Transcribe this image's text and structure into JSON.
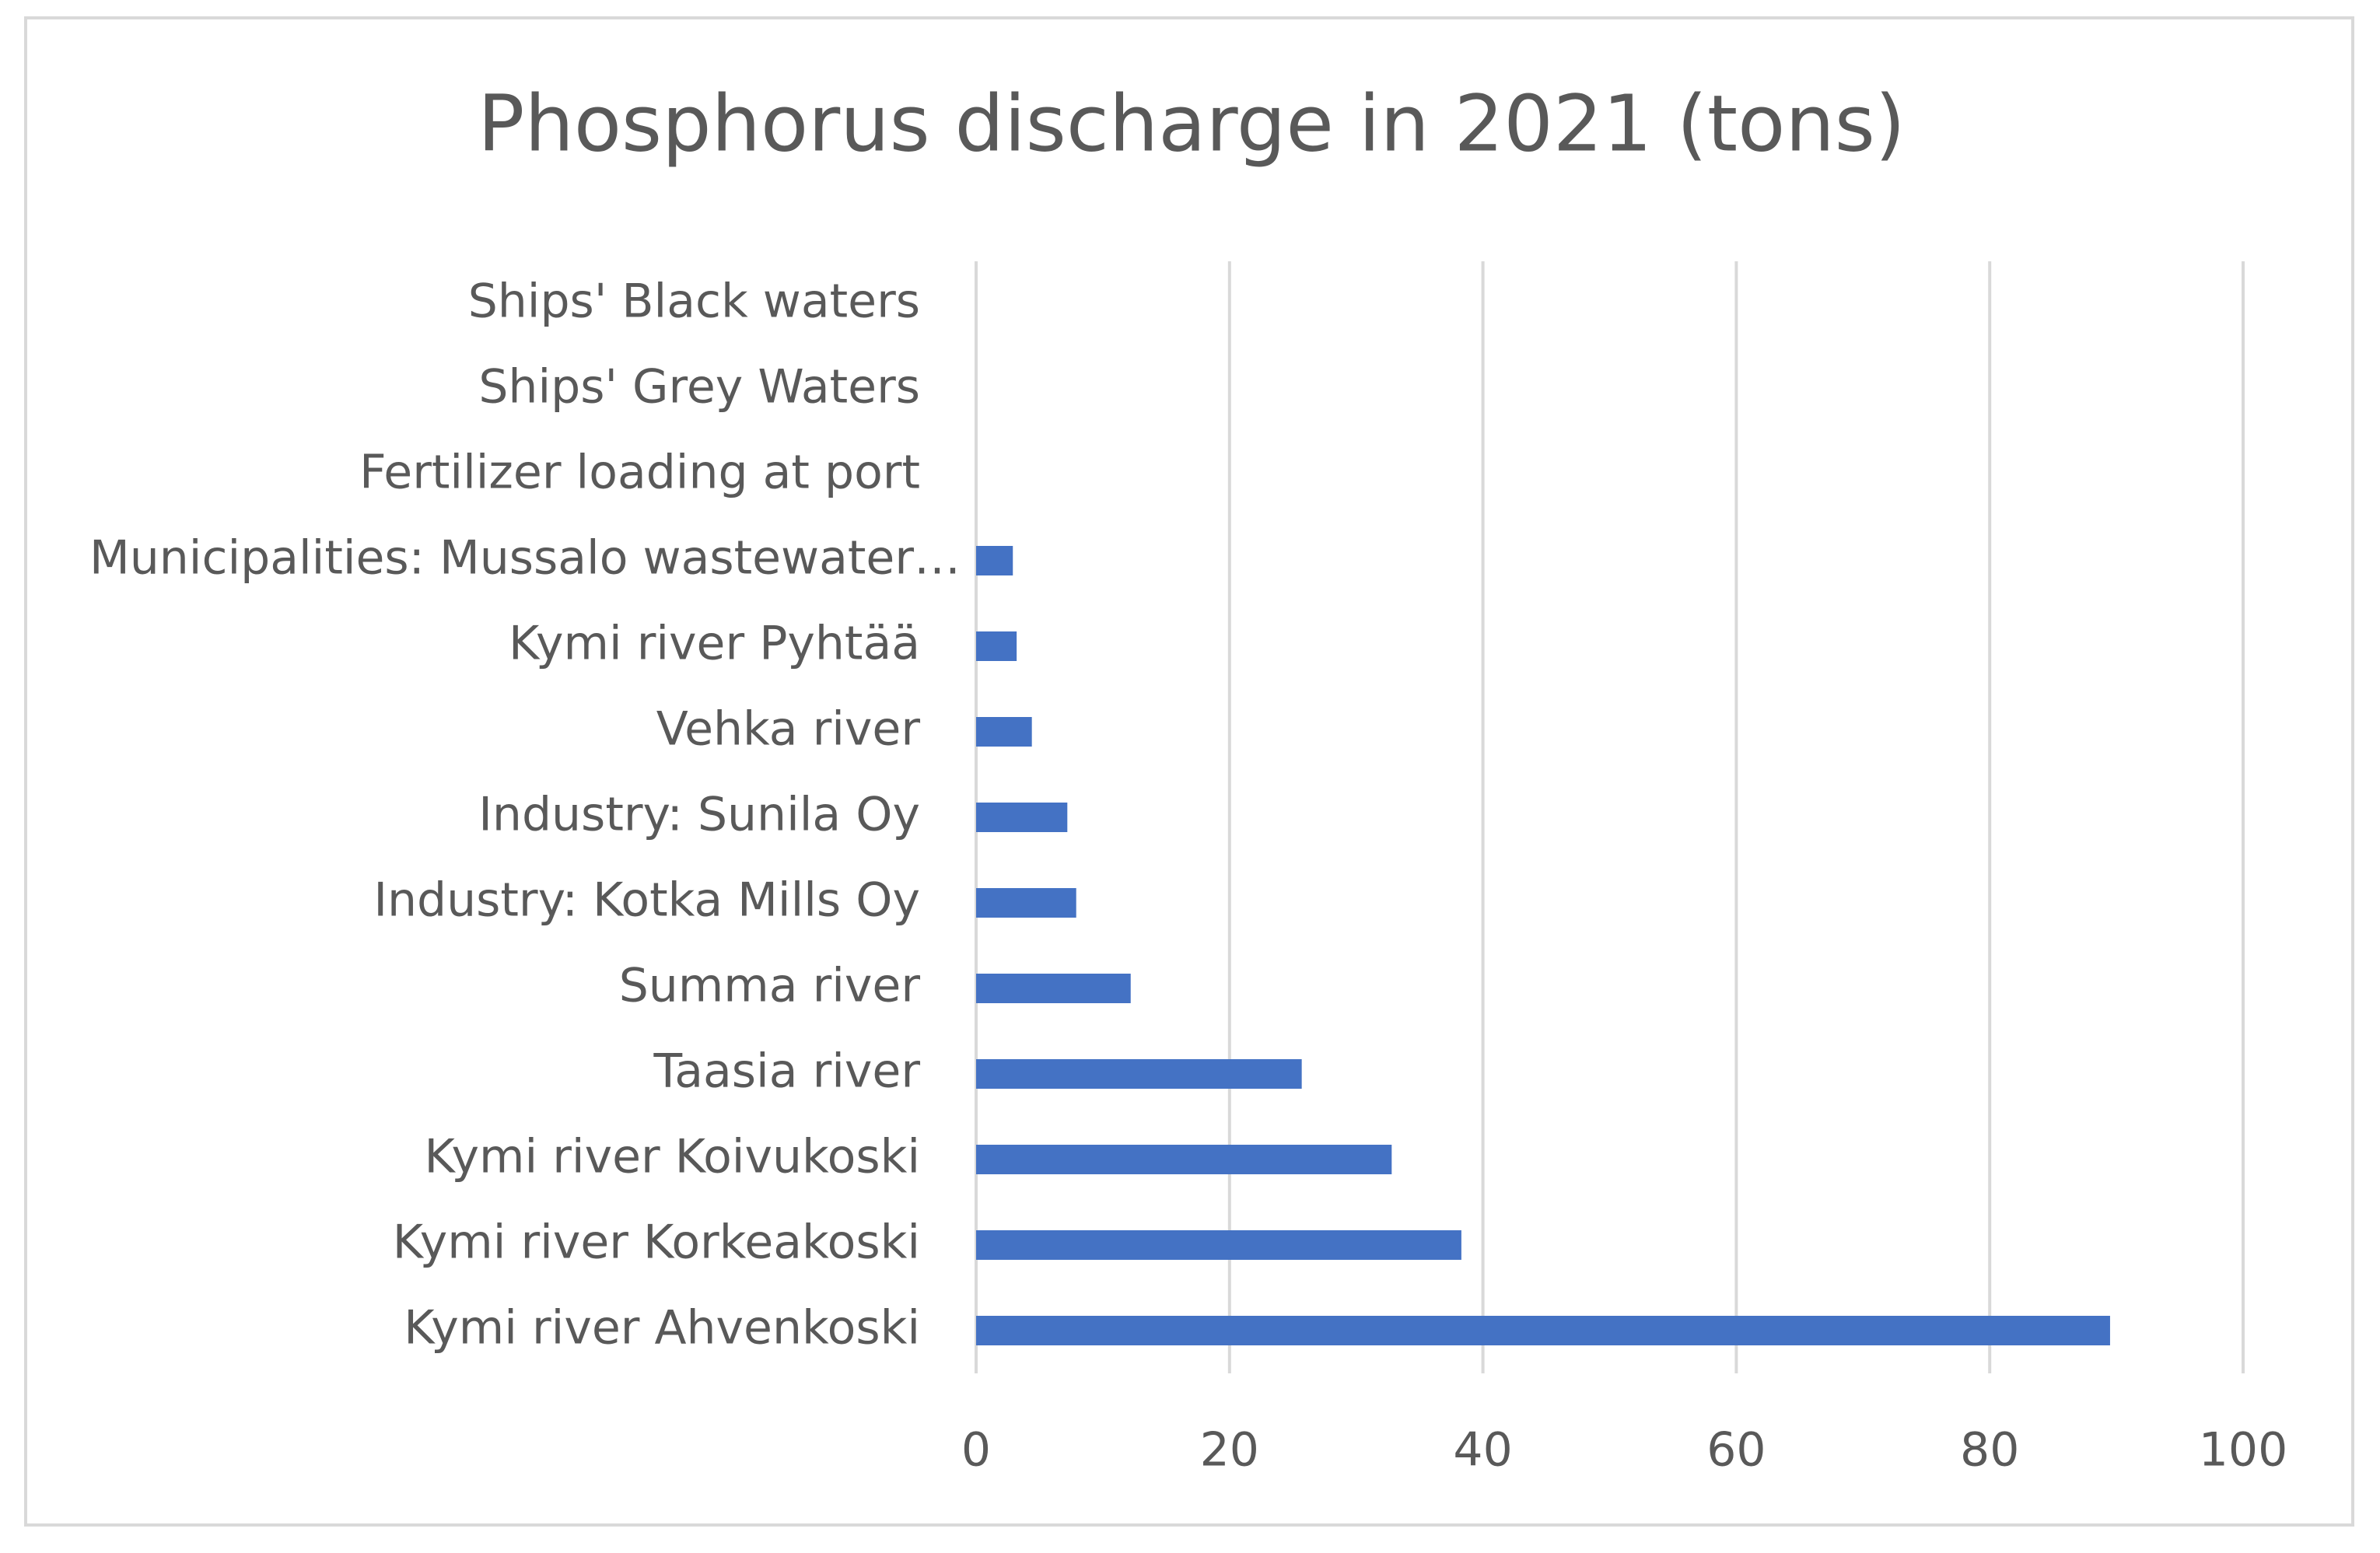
{
  "chart_data": {
    "type": "hbar",
    "title": "Phosphorus discharge in 2021 (tons)",
    "categories": [
      "Ships' Black waters",
      "Ships' Grey Waters",
      "Fertilizer loading at port",
      "Municipalities: Mussalo wastewater…",
      "Kymi river Pyhtää",
      "Vehka river",
      "Industry: Sunila Oy",
      "Industry: Kotka Mills Oy",
      "Summa river",
      "Taasia river",
      "Kymi river Koivukoski",
      "Kymi river Korkeakoski",
      "Kymi river Ahvenkoski"
    ],
    "values": [
      0,
      0,
      0,
      2.9,
      3.2,
      4.4,
      7.2,
      7.9,
      12.2,
      25.7,
      32.8,
      38.3,
      89.5
    ],
    "color": "#4472c4",
    "xlim": [
      0,
      100
    ],
    "xticks": [
      0,
      20,
      40,
      60,
      80,
      100
    ],
    "grid": true
  }
}
